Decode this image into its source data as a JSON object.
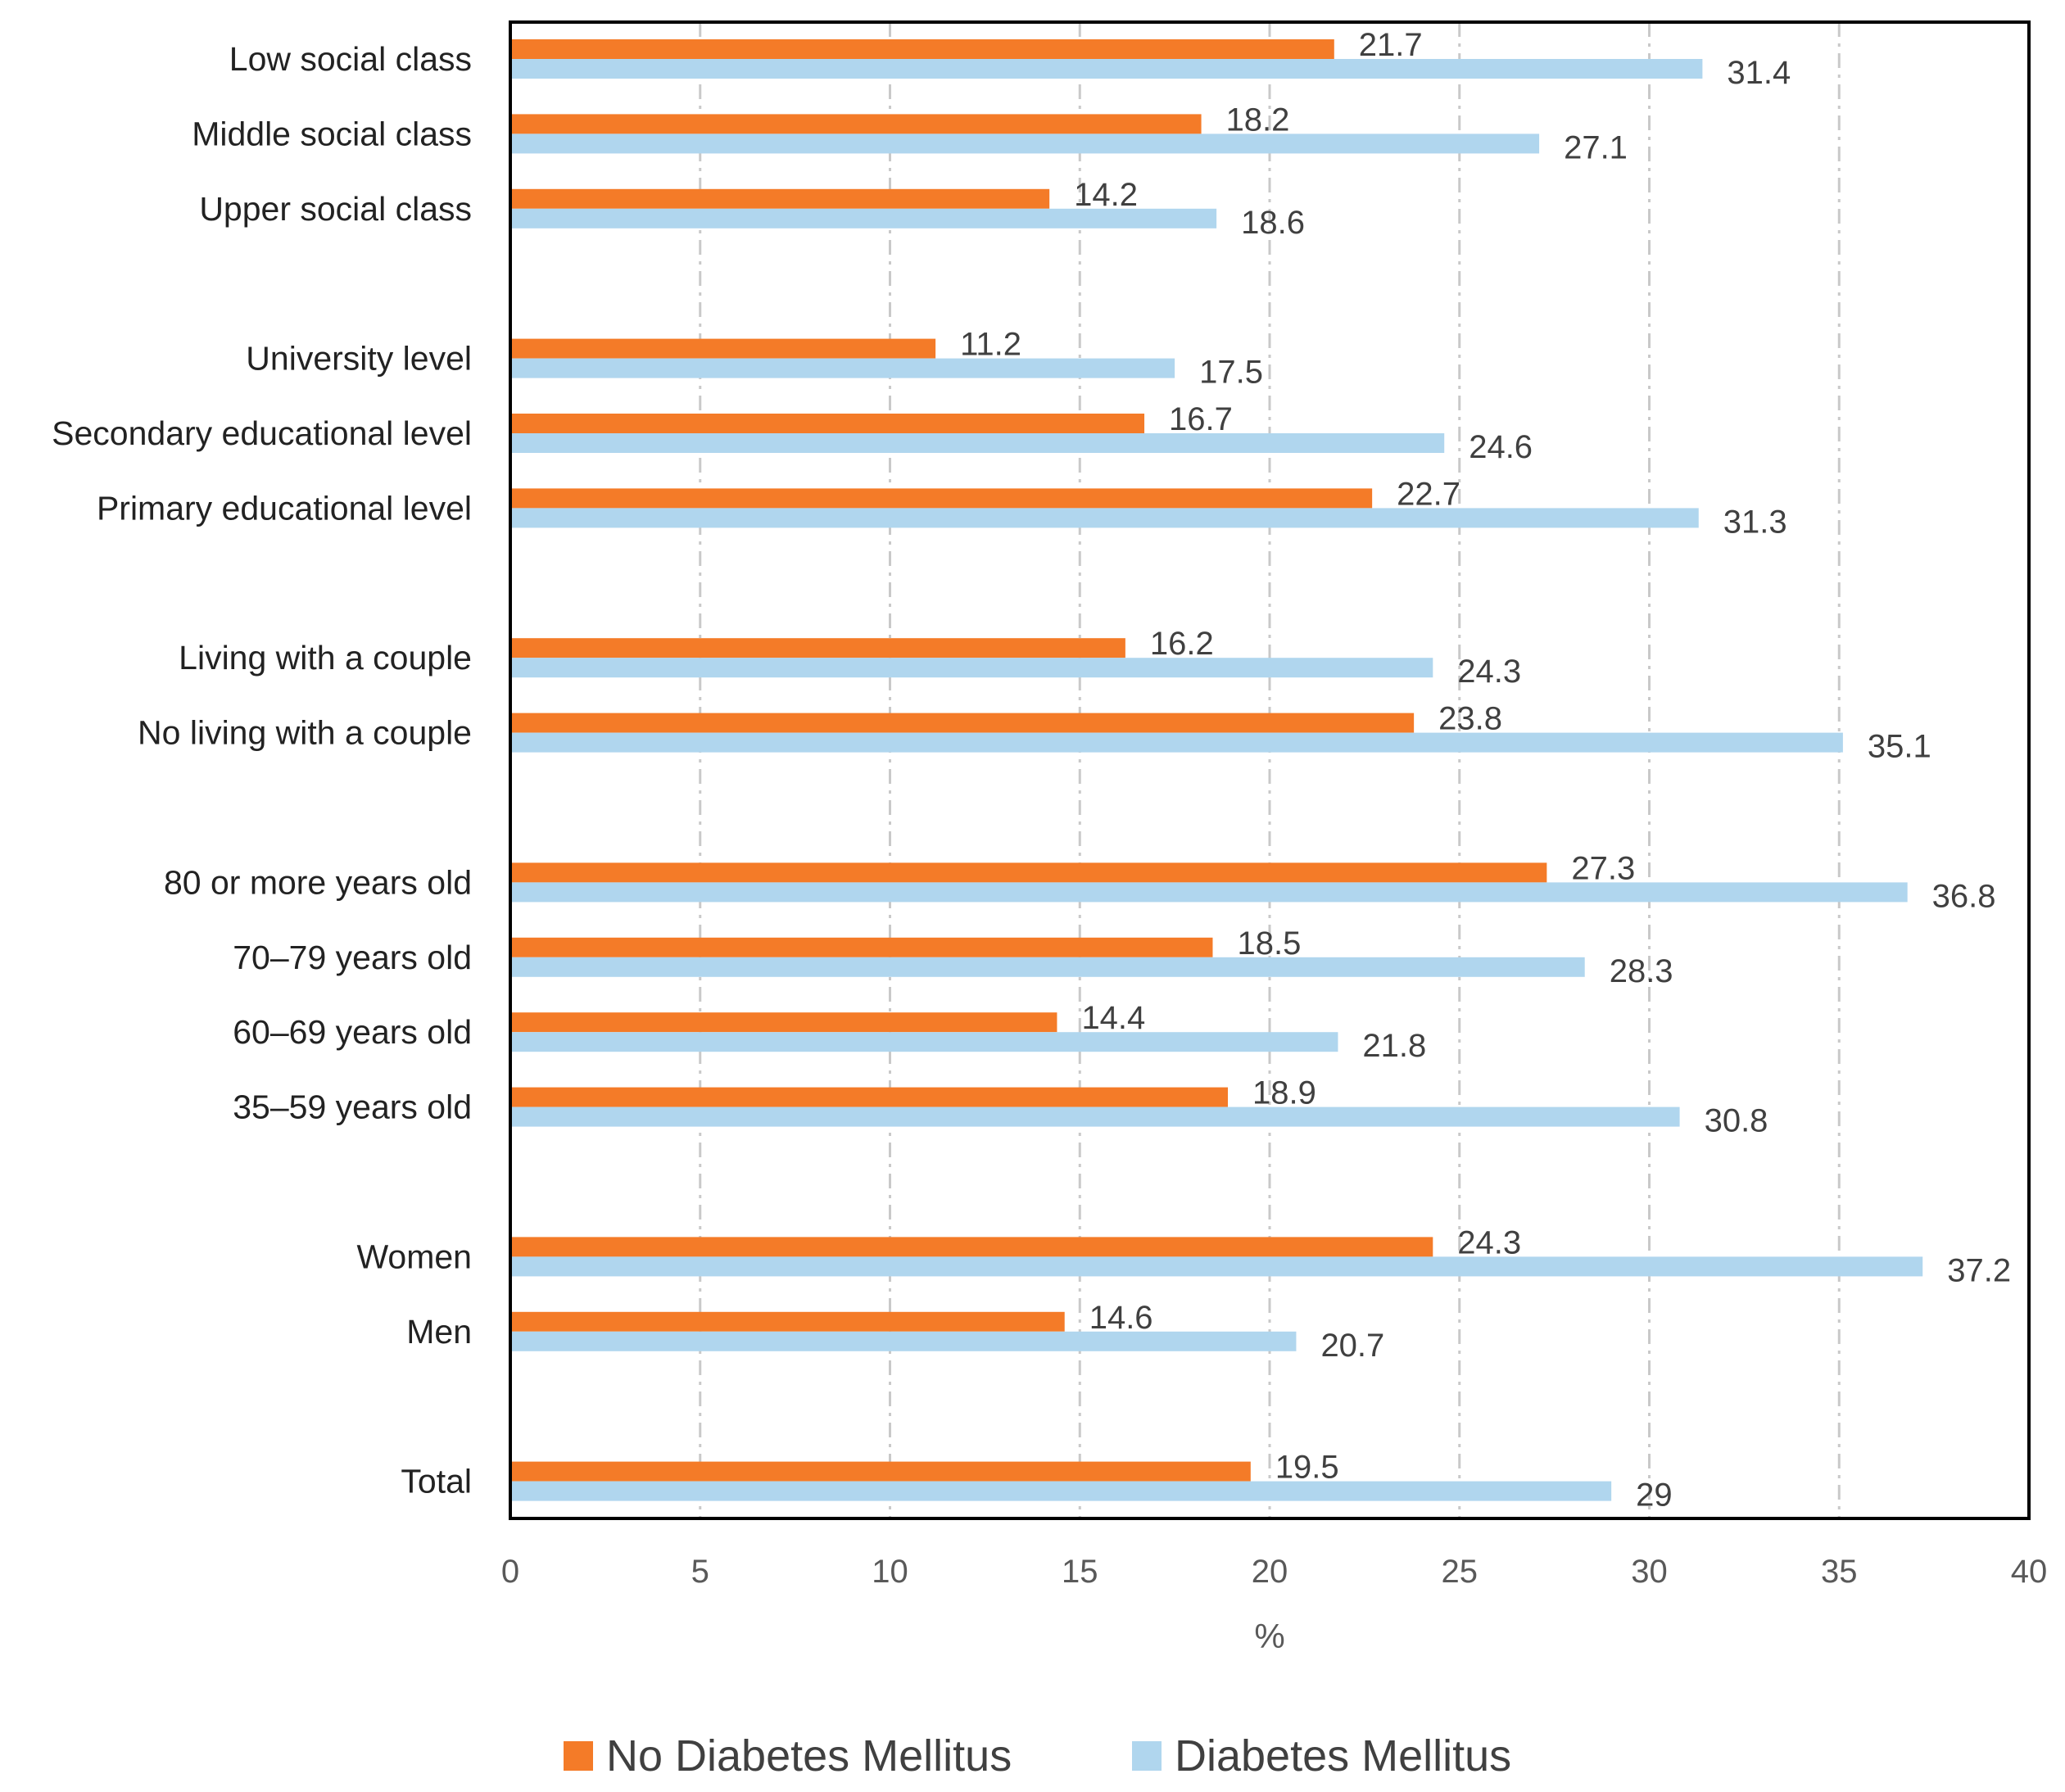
{
  "chart_data": {
    "type": "bar",
    "orientation": "horizontal",
    "categories": [
      "Low social class",
      "Middle social class",
      "Upper social class",
      "University level",
      "Secondary educational level",
      "Primary educational level",
      "Living with a couple",
      "No living with a couple",
      "80 or more years old",
      "70–79 years old",
      "60–69 years old",
      "35–59 years old",
      "Women",
      "Men",
      "Total"
    ],
    "groups": [
      [
        "Low social class",
        "Middle social class",
        "Upper social class"
      ],
      [
        "University level",
        "Secondary educational level",
        "Primary educational level"
      ],
      [
        "Living with a couple",
        "No living with a couple"
      ],
      [
        "80 or more years old",
        "70–79 years old",
        "60–69 years old",
        "35–59 years old"
      ],
      [
        "Women",
        "Men"
      ],
      [
        "Total"
      ]
    ],
    "series": [
      {
        "name": "No Diabetes Mellitus",
        "color": "#F47B28",
        "values": [
          21.7,
          18.2,
          14.2,
          11.2,
          16.7,
          22.7,
          16.2,
          23.8,
          27.3,
          18.5,
          14.4,
          18.9,
          24.3,
          14.6,
          19.5
        ],
        "labels": [
          "21.7",
          "18.2",
          "14.2",
          "11.2",
          "16.7",
          "22.7",
          "16.2",
          "23.8",
          "27.3",
          "18.5",
          "14.4",
          "18.9",
          "24.3",
          "14.6",
          "19.5"
        ]
      },
      {
        "name": "Diabetes Mellitus",
        "color": "#B0D6EE",
        "values": [
          31.4,
          27.1,
          18.6,
          17.5,
          24.6,
          31.3,
          24.3,
          35.1,
          36.8,
          28.3,
          21.8,
          30.8,
          37.2,
          20.7,
          29
        ],
        "labels": [
          "31.4",
          "27.1",
          "18.6",
          "17.5",
          "24.6",
          "31.3",
          "24.3",
          "35.1",
          "36.8",
          "28.3",
          "21.8",
          "30.8",
          "37.2",
          "20.7",
          "29"
        ]
      }
    ],
    "title": "",
    "xlabel": "%",
    "ylabel": "",
    "xlim": [
      0,
      40
    ],
    "xticks": [
      0,
      5,
      10,
      15,
      20,
      25,
      30,
      35,
      40
    ],
    "xtick_labels": [
      "0",
      "5",
      "10",
      "15",
      "20",
      "25",
      "30",
      "35",
      "40"
    ],
    "grid": true,
    "grid_style": "dash-dot vertical",
    "legend_position": "bottom"
  }
}
